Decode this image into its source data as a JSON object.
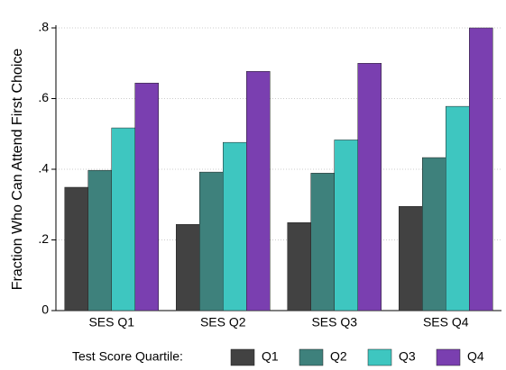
{
  "chart_data": {
    "type": "bar",
    "ylabel": "Fraction Who Can Attend First Choice",
    "categories": [
      "SES Q1",
      "SES Q2",
      "SES Q3",
      "SES Q4"
    ],
    "legend_title": "Test Score Quartile:",
    "series": [
      {
        "name": "Q1",
        "color": "#424242",
        "values": [
          0.349,
          0.244,
          0.249,
          0.295
        ]
      },
      {
        "name": "Q2",
        "color": "#3e817c",
        "values": [
          0.397,
          0.392,
          0.389,
          0.433
        ]
      },
      {
        "name": "Q3",
        "color": "#3ec6c0",
        "values": [
          0.517,
          0.476,
          0.483,
          0.578
        ]
      },
      {
        "name": "Q4",
        "color": "#7a3fb0",
        "values": [
          0.644,
          0.677,
          0.7,
          0.8
        ]
      }
    ],
    "ylim": [
      0,
      0.8
    ],
    "yticks": [
      0,
      {
        "value": 0.2,
        "label": ".2"
      },
      {
        "value": 0.4,
        "label": ".4"
      },
      {
        "value": 0.6,
        "label": ".6"
      },
      {
        "value": 0.8,
        "label": ".8"
      }
    ],
    "grid": true,
    "legend": "bottom"
  }
}
